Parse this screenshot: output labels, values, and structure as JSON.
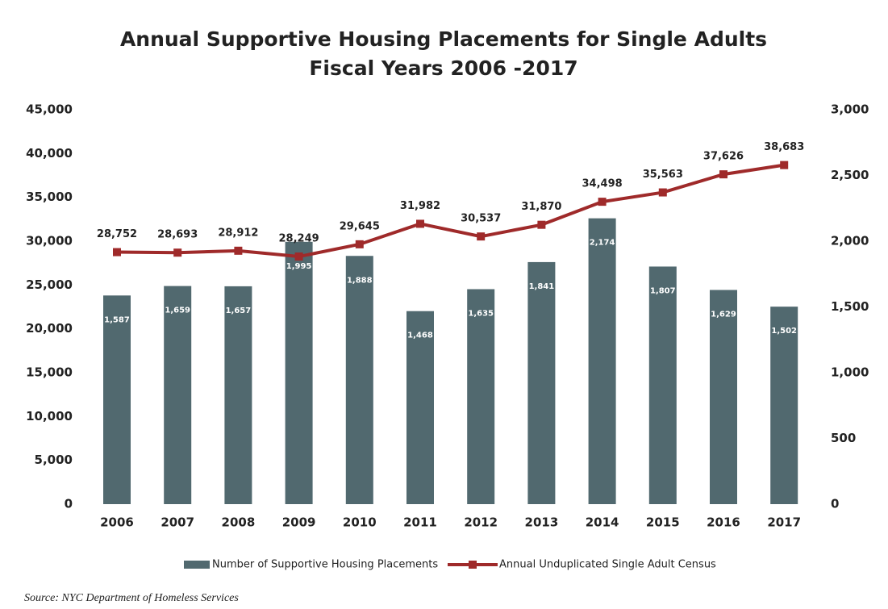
{
  "chart_data": {
    "type": "bar_line",
    "title": "Annual Supportive Housing Placements for Single Adults",
    "subtitle": "Fiscal Years 2006 -2017",
    "source": "Source:  NYC Department of Homeless Services",
    "categories": [
      "2006",
      "2007",
      "2008",
      "2009",
      "2010",
      "2011",
      "2012",
      "2013",
      "2014",
      "2015",
      "2016",
      "2017"
    ],
    "series": [
      {
        "name": "Number of Supportive Housing Placements",
        "type": "bar",
        "axis": "y2",
        "color": "#51696f",
        "values": [
          1587,
          1659,
          1657,
          1995,
          1888,
          1468,
          1635,
          1841,
          2174,
          1807,
          1629,
          1502
        ],
        "value_labels": [
          "1,587",
          "1,659",
          "1,657",
          "1,995",
          "1,888",
          "1,468",
          "1,635",
          "1,841",
          "2,174",
          "1,807",
          "1,629",
          "1,502"
        ]
      },
      {
        "name": "Annual Unduplicated Single Adult Census",
        "type": "line",
        "axis": "y",
        "color": "#9f2a2a",
        "values": [
          28752,
          28693,
          28912,
          28249,
          29645,
          31982,
          30537,
          31870,
          34498,
          35563,
          37626,
          38683
        ],
        "value_labels": [
          "28,752",
          "28,693",
          "28,912",
          "28,249",
          "29,645",
          "31,982",
          "30,537",
          "31,870",
          "34,498",
          "35,563",
          "37,626",
          "38,683"
        ]
      }
    ],
    "ylim": [
      0,
      45000
    ],
    "yticks": [
      0,
      {
        "value": 5000,
        "label": "5,000"
      },
      {
        "value": 10000,
        "label": "10,000"
      },
      {
        "value": 15000,
        "label": "15,000"
      },
      {
        "value": 20000,
        "label": "20,000"
      },
      {
        "value": 25000,
        "label": "25,000"
      },
      {
        "value": 30000,
        "label": "30,000"
      },
      {
        "value": 35000,
        "label": "35,000"
      },
      {
        "value": 40000,
        "label": "40,000"
      },
      {
        "value": 45000,
        "label": "45,000"
      }
    ],
    "y2lim": [
      0,
      3000
    ],
    "y2ticks": [
      0,
      500,
      {
        "value": 1000,
        "label": "1,000"
      },
      {
        "value": 1500,
        "label": "1,500"
      },
      {
        "value": 2000,
        "label": "2,000"
      },
      {
        "value": 2500,
        "label": "2,500"
      },
      {
        "value": 3000,
        "label": "3,000"
      }
    ],
    "grid": false,
    "legend": "bottom"
  }
}
